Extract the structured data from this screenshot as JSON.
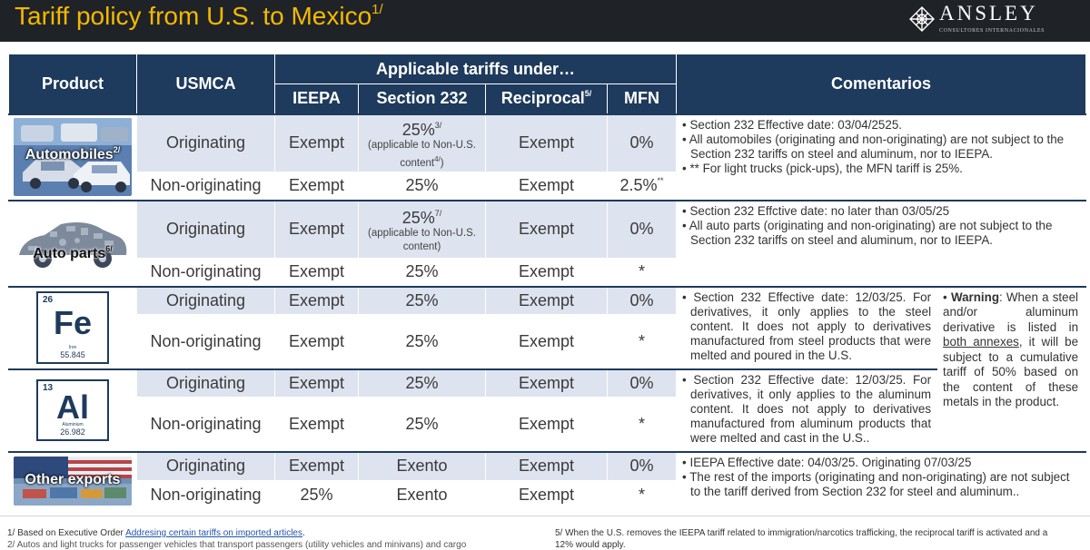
{
  "header": {
    "title": "Tariff policy from U.S. to Mexico",
    "title_sup": "1/",
    "logo_name": "ANSLEY",
    "logo_sub": "CONSULTORES INTERNACIONALES"
  },
  "colors": {
    "header_bg": "#1f2328",
    "title": "#f5b800",
    "table_header": "#1e3a5c",
    "cell_shade": "#dde3ef"
  },
  "columns": {
    "product": "Product",
    "usmca": "USMCA",
    "applicable": "Applicable tariffs under…",
    "ieepa": "IEEPA",
    "s232": "Section 232",
    "reciprocal": "Reciprocal",
    "reciprocal_sup": "5/",
    "mfn": "MFN",
    "comments": "Comentarios"
  },
  "automobiles": {
    "label": "Automobiles",
    "label_sup": "2/",
    "rows": [
      {
        "usmca": "Originating",
        "ieepa": "Exempt",
        "s232": "25%",
        "s232_sup": "3/",
        "s232_note": "(applicable to Non-U.S. content",
        "s232_note_sup": "4/",
        "s232_note_end": ")",
        "reciprocal": "Exempt",
        "mfn": "0%"
      },
      {
        "usmca": "Non-originating",
        "ieepa": "Exempt",
        "s232": "25%",
        "reciprocal": "Exempt",
        "mfn": "2.5%",
        "mfn_sup": "**"
      }
    ],
    "comments": [
      "Section 232 Effective date: 03/04/2525.",
      "All automobiles (originating and non-originating) are not subject to the Section 232 tariffs on steel and aluminum, nor to IEEPA.",
      "** For light trucks (pick-ups), the MFN tariff is 25%."
    ]
  },
  "auto_parts": {
    "label": "Auto parts",
    "label_sup": "6/",
    "rows": [
      {
        "usmca": "Originating",
        "ieepa": "Exempt",
        "s232": "25%",
        "s232_sup": "7/",
        "s232_note": "(applicable to Non-U.S. content)",
        "reciprocal": "Exempt",
        "mfn": "0%"
      },
      {
        "usmca": "Non-originating",
        "ieepa": "Exempt",
        "s232": "25%",
        "reciprocal": "Exempt",
        "mfn": "*"
      }
    ],
    "comments": [
      "Section 232 Effctive date: no later than 03/05/25",
      "All auto parts (originating and non-originating) are not subject to the Section 232 tariffs on steel and aluminum, nor to IEEPA."
    ]
  },
  "steel": {
    "number": "26",
    "symbol": "Fe",
    "name": "Iron",
    "mass": "55.845",
    "rows": [
      {
        "usmca": "Originating",
        "ieepa": "Exempt",
        "s232": "25%",
        "reciprocal": "Exempt",
        "mfn": "0%"
      },
      {
        "usmca": "Non-originating",
        "ieepa": "Exempt",
        "s232": "25%",
        "reciprocal": "Exempt",
        "mfn": "*"
      }
    ],
    "comments": [
      "Section 232 Effective date: 12/03/25. For derivatives, it only applies to the steel content. It does not apply to derivatives manufactured from steel products that were melted and poured in the U.S."
    ]
  },
  "aluminum": {
    "number": "13",
    "symbol": "Al",
    "name": "Aluminium",
    "mass": "26.982",
    "rows": [
      {
        "usmca": "Originating",
        "ieepa": "Exempt",
        "s232": "25%",
        "reciprocal": "Exempt",
        "mfn": "0%"
      },
      {
        "usmca": "Non-originating",
        "ieepa": "Exempt",
        "s232": "25%",
        "reciprocal": "Exempt",
        "mfn": "*"
      }
    ],
    "comments": [
      "Section 232 Effective date: 12/03/25. For derivatives, it only applies to the aluminum content. It does not apply to derivatives manufactured from aluminum products that were melted and cast in the U.S.."
    ]
  },
  "warning": {
    "label": "Warning",
    "text_a": ": When a steel and/or aluminum derivative is listed in ",
    "link": "both annexes",
    "text_b": ", it will be subject to a cumulative tariff of 50% based on the content of these metals in the product."
  },
  "other_exports": {
    "label": "Other exports",
    "rows": [
      {
        "usmca": "Originating",
        "ieepa": "Exempt",
        "s232": "Exento",
        "reciprocal": "Exempt",
        "mfn": "0%"
      },
      {
        "usmca": "Non-originating",
        "ieepa": "25%",
        "s232": "Exento",
        "reciprocal": "Exempt",
        "mfn": "*"
      }
    ],
    "comments": [
      "IEEPA Effective date: 04/03/25. Originating 07/03/25",
      "The rest of the imports (originating and non-originating) are not subject to the tariff derived from Section 232 for steel and aluminum.."
    ]
  },
  "footnotes": {
    "fn1_prefix": "1/ Based on Executive Order ",
    "fn1_link": "Addresing certain tariffs on imported articles",
    "fn1_suffix": ".",
    "fn2": "2/ Autos and light trucks for passenger vehicles that transport passengers (utility vehicles and minivans) and cargo",
    "fn5": "5/ When the U.S. removes the IEEPA tariff related to immigration/narcotics trafficking, the reciprocal tariff is activated and a",
    "fn5b": "12% would apply."
  }
}
